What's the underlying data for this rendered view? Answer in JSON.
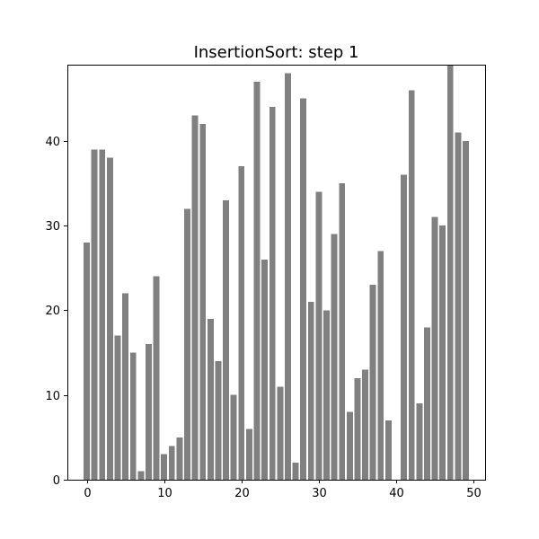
{
  "chart_data": {
    "type": "bar",
    "title": "InsertionSort: step 1",
    "xlabel": "",
    "ylabel": "",
    "x": [
      0,
      1,
      2,
      3,
      4,
      5,
      6,
      7,
      8,
      9,
      10,
      11,
      12,
      13,
      14,
      15,
      16,
      17,
      18,
      19,
      20,
      21,
      22,
      23,
      24,
      25,
      26,
      27,
      28,
      29,
      30,
      31,
      32,
      33,
      34,
      35,
      36,
      37,
      38,
      39,
      40,
      41,
      42,
      43,
      44,
      45,
      46,
      47,
      48,
      49
    ],
    "values": [
      28,
      39,
      39,
      38,
      17,
      22,
      15,
      1,
      16,
      24,
      3,
      4,
      5,
      32,
      43,
      42,
      19,
      14,
      33,
      10,
      37,
      6,
      47,
      26,
      44,
      11,
      48,
      2,
      45,
      21,
      34,
      20,
      29,
      35,
      8,
      12,
      13,
      23,
      27,
      7,
      0,
      36,
      46,
      9,
      18,
      31,
      30,
      49,
      41,
      40
    ],
    "xlim": [
      -2.5,
      51.5
    ],
    "ylim": [
      0,
      49
    ],
    "xticks": [
      0,
      10,
      20,
      30,
      40,
      50
    ],
    "yticks": [
      0,
      10,
      20,
      30,
      40
    ],
    "bar_color": "#808080",
    "grid": false,
    "legend": "none"
  }
}
